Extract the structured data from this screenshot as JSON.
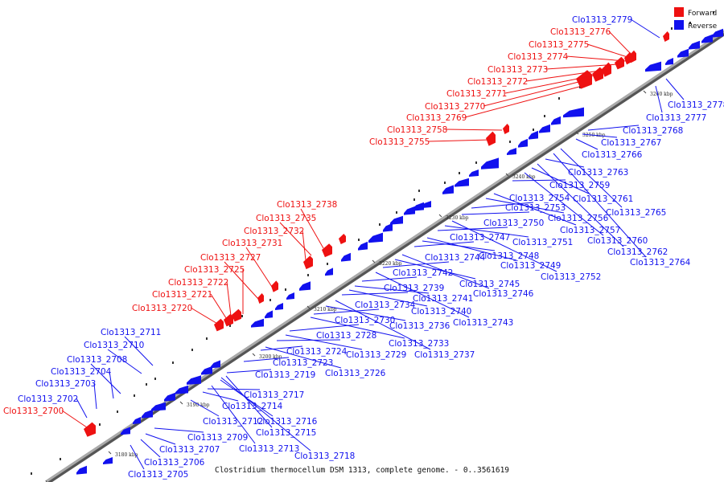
{
  "caption": "Clostridium thermocellum DSM 1313, complete genome. - 0..3561619",
  "legend": [
    {
      "label": "Forward",
      "color": "#ee1111"
    },
    {
      "label": "Reverse",
      "color": "#1111ee"
    }
  ],
  "colors": {
    "forward": "#ee1111",
    "reverse": "#1111ee",
    "axis": "#888888"
  },
  "ticks": [
    "3180 kbp",
    "3190 kbp",
    "3200 kbp",
    "3210 kbp",
    "3220 kbp",
    "3230 kbp",
    "3240 kbp",
    "3250 kbp",
    "3260 kbp"
  ],
  "forward_genes": [
    "Clo1313_2700",
    "Clo1313_2720",
    "Clo1313_2721",
    "Clo1313_2722",
    "Clo1313_2725",
    "Clo1313_2727",
    "Clo1313_2731",
    "Clo1313_2732",
    "Clo1313_2735",
    "Clo1313_2738",
    "Clo1313_2755",
    "Clo1313_2758",
    "Clo1313_2769",
    "Clo1313_2770",
    "Clo1313_2771",
    "Clo1313_2772",
    "Clo1313_2773",
    "Clo1313_2774",
    "Clo1313_2775",
    "Clo1313_2776"
  ],
  "reverse_genes_above": [
    "Clo1313_2702",
    "Clo1313_2703",
    "Clo1313_2704",
    "Clo1313_2708",
    "Clo1313_2710",
    "Clo1313_2711",
    "Clo1313_2779"
  ],
  "reverse_genes_below": [
    "Clo1313_2705",
    "Clo1313_2706",
    "Clo1313_2707",
    "Clo1313_2709",
    "Clo1313_2712",
    "Clo1313_2713",
    "Clo1313_2714",
    "Clo1313_2715",
    "Clo1313_2716",
    "Clo1313_2717",
    "Clo1313_2718",
    "Clo1313_2719",
    "Clo1313_2723",
    "Clo1313_2724",
    "Clo1313_2726",
    "Clo1313_2728",
    "Clo1313_2729",
    "Clo1313_2730",
    "Clo1313_2733",
    "Clo1313_2734",
    "Clo1313_2736",
    "Clo1313_2737",
    "Clo1313_2739",
    "Clo1313_2740",
    "Clo1313_2741",
    "Clo1313_2742",
    "Clo1313_2743",
    "Clo1313_2744",
    "Clo1313_2745",
    "Clo1313_2746",
    "Clo1313_2747",
    "Clo1313_2748",
    "Clo1313_2749",
    "Clo1313_2750",
    "Clo1313_2751",
    "Clo1313_2752",
    "Clo1313_2753",
    "Clo1313_2754",
    "Clo1313_2756",
    "Clo1313_2757",
    "Clo1313_2759",
    "Clo1313_2760",
    "Clo1313_2761",
    "Clo1313_2762",
    "Clo1313_2763",
    "Clo1313_2764",
    "Clo1313_2765",
    "Clo1313_2766",
    "Clo1313_2767",
    "Clo1313_2768",
    "Clo1313_2777",
    "Clo1313_2778"
  ]
}
